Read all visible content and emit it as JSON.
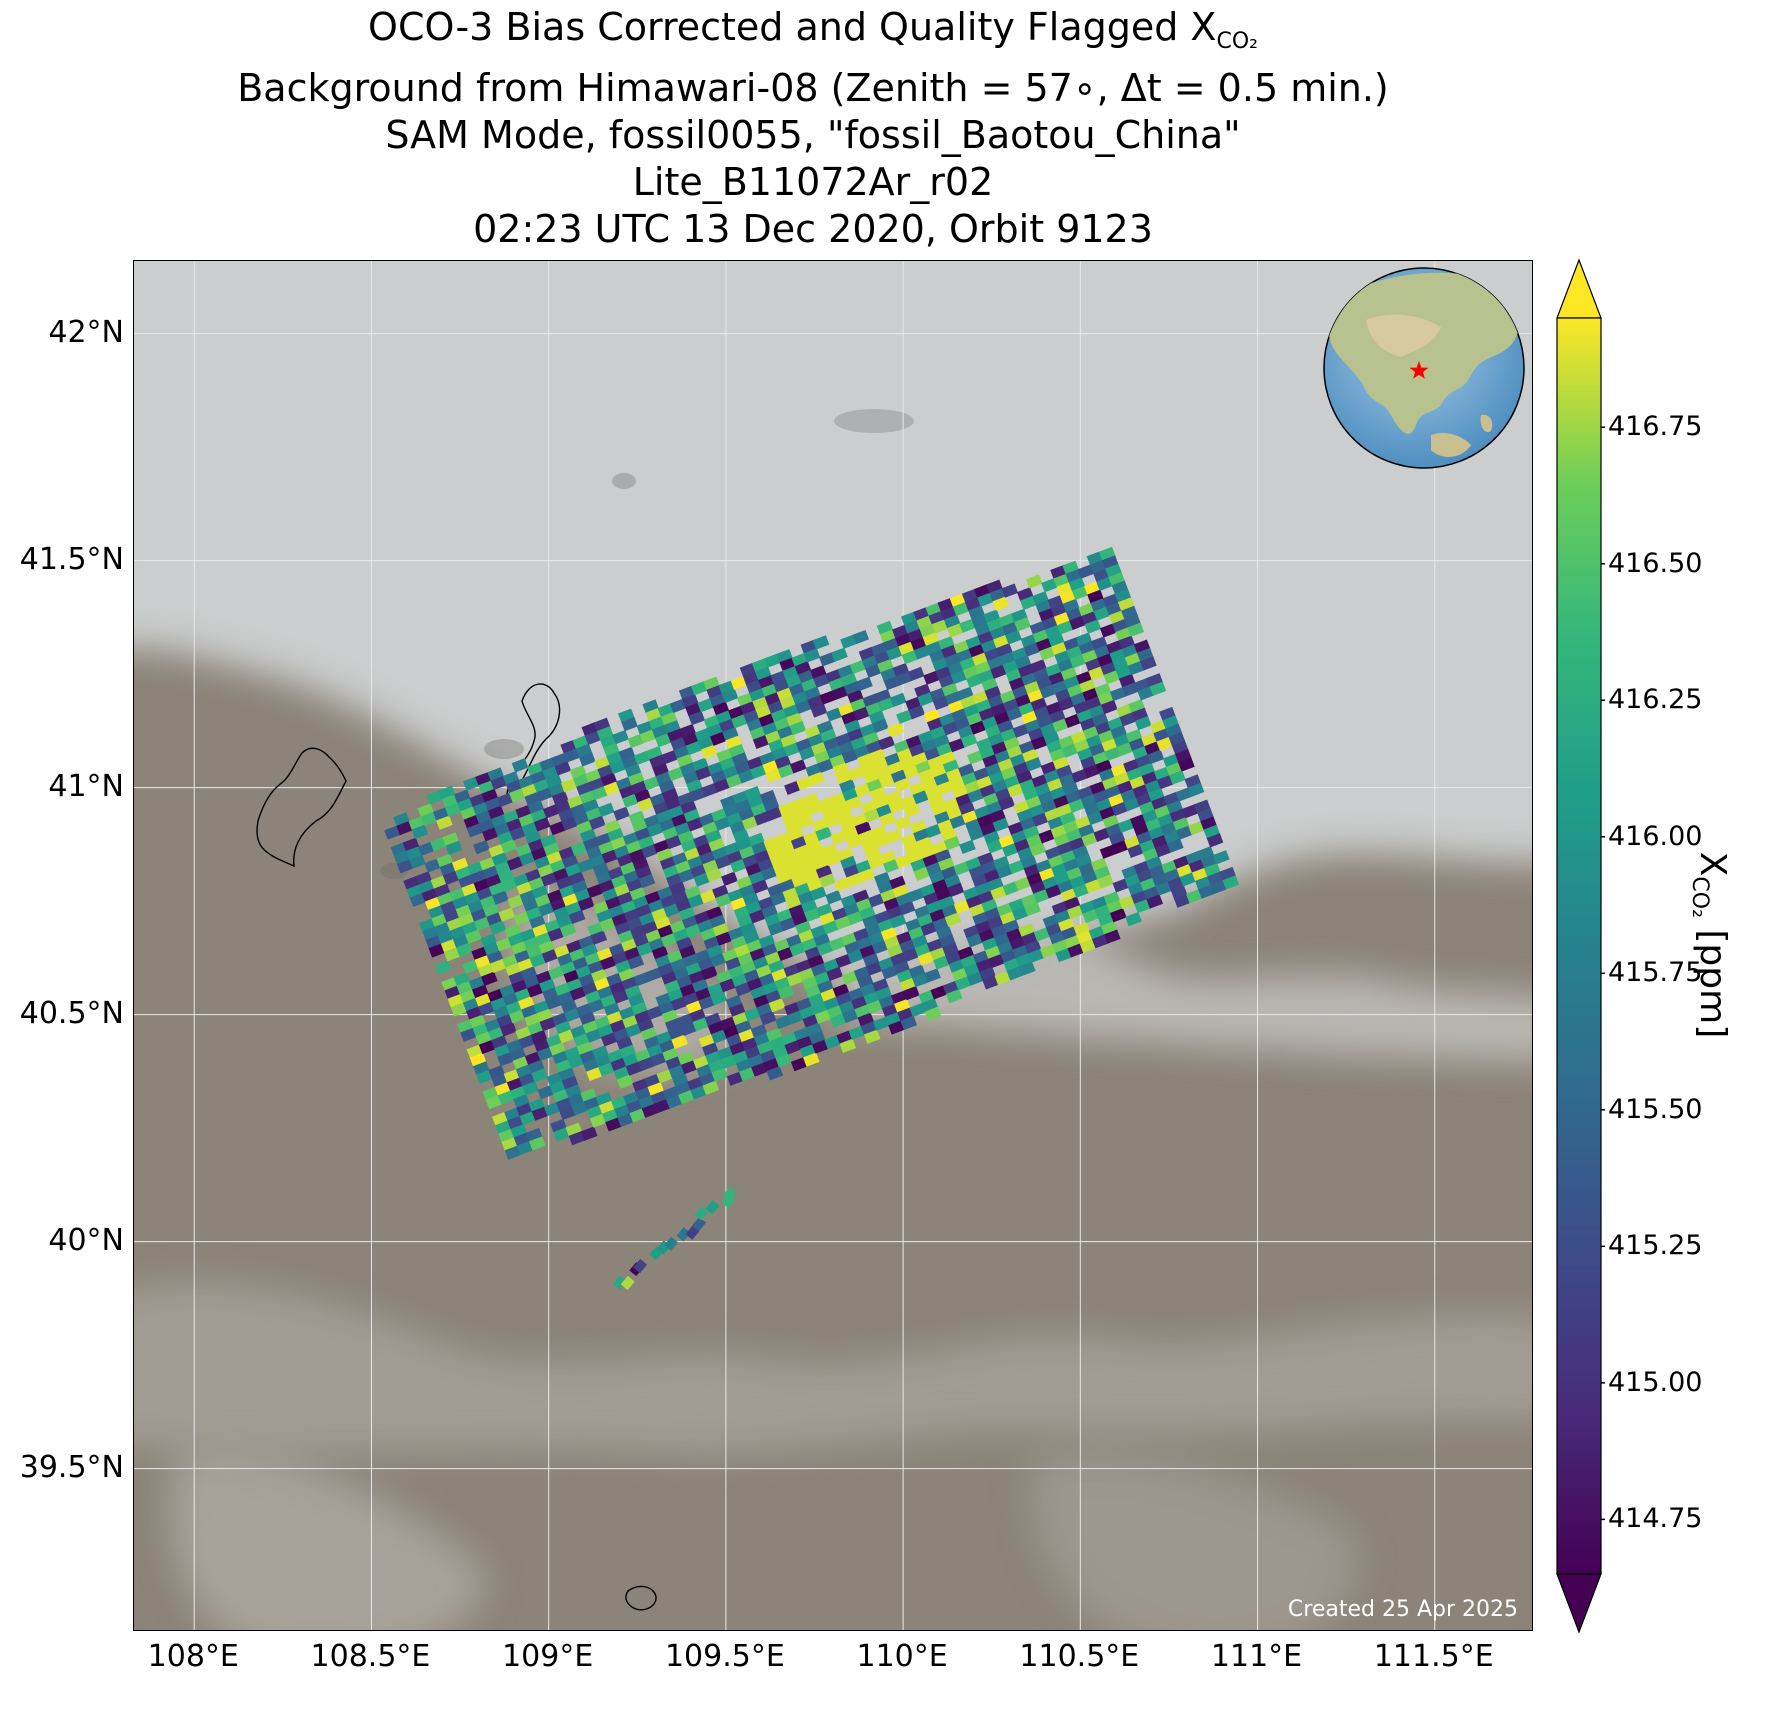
{
  "title": {
    "line1_prefix": "OCO-3 Bias Corrected and Quality Flagged X",
    "line1_sub": "CO₂",
    "line2": "Background from Himawari-08 (Zenith = 57∘, Δt =  0.5 min.)",
    "line3": "SAM Mode, fossil0055, \"fossil_Baotou_China\"",
    "line4": "Lite_B11072Ar_r02",
    "line5": "02:23 UTC 13 Dec 2020, Orbit 9123"
  },
  "map": {
    "lon_range": [
      107.83,
      111.78
    ],
    "lat_range": [
      39.14,
      42.16
    ],
    "lat_ticks": [
      {
        "value": 42.0,
        "label": "42°N"
      },
      {
        "value": 41.5,
        "label": "41.5°N"
      },
      {
        "value": 41.0,
        "label": "41°N"
      },
      {
        "value": 40.5,
        "label": "40.5°N"
      },
      {
        "value": 40.0,
        "label": "40°N"
      },
      {
        "value": 39.5,
        "label": "39.5°N"
      }
    ],
    "lon_ticks": [
      {
        "value": 108.0,
        "label": "108°E"
      },
      {
        "value": 108.5,
        "label": "108.5°E"
      },
      {
        "value": 109.0,
        "label": "109°E"
      },
      {
        "value": 109.5,
        "label": "109.5°E"
      },
      {
        "value": 110.0,
        "label": "110°E"
      },
      {
        "value": 110.5,
        "label": "110.5°E"
      },
      {
        "value": 111.0,
        "label": "111°E"
      },
      {
        "value": 111.5,
        "label": "111.5°E"
      }
    ],
    "created_text": "Created 25 Apr 2025",
    "target_marker": "red-star",
    "colors": {
      "cloud": "#c9cbcc",
      "ground": "#8a8276",
      "marker": "#ff0000"
    }
  },
  "colorbar": {
    "colormap": "viridis",
    "min": 414.65,
    "max": 416.95,
    "extend": "both",
    "ticks": [
      {
        "value": 416.75,
        "label": "416.75"
      },
      {
        "value": 416.5,
        "label": "416.50"
      },
      {
        "value": 416.25,
        "label": "416.25"
      },
      {
        "value": 416.0,
        "label": "416.00"
      },
      {
        "value": 415.75,
        "label": "415.75"
      },
      {
        "value": 415.5,
        "label": "415.50"
      },
      {
        "value": 415.25,
        "label": "415.25"
      },
      {
        "value": 415.0,
        "label": "415.00"
      },
      {
        "value": 414.75,
        "label": "414.75"
      }
    ],
    "label_prefix": "X",
    "label_sub": "CO₂",
    "label_suffix": " [ppm]"
  }
}
